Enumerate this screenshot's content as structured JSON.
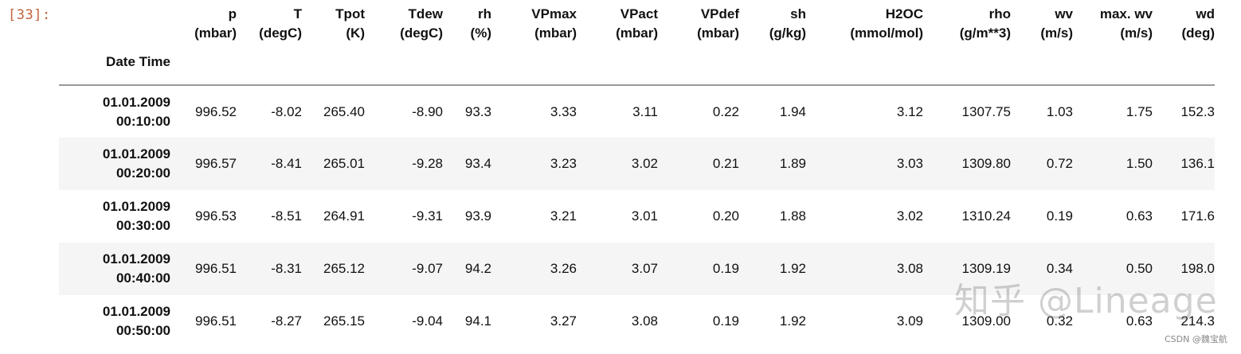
{
  "cell": {
    "prompt": "[33]:"
  },
  "table": {
    "index_name": "Date Time",
    "columns": [
      {
        "name": "p",
        "unit": "(mbar)"
      },
      {
        "name": "T",
        "unit": "(degC)"
      },
      {
        "name": "Tpot",
        "unit": "(K)"
      },
      {
        "name": "Tdew",
        "unit": "(degC)"
      },
      {
        "name": "rh",
        "unit": "(%)"
      },
      {
        "name": "VPmax",
        "unit": "(mbar)"
      },
      {
        "name": "VPact",
        "unit": "(mbar)"
      },
      {
        "name": "VPdef",
        "unit": "(mbar)"
      },
      {
        "name": "sh",
        "unit": "(g/kg)"
      },
      {
        "name": "H2OC",
        "unit": "(mmol/mol)"
      },
      {
        "name": "rho",
        "unit": "(g/m**3)"
      },
      {
        "name": "wv",
        "unit": "(m/s)"
      },
      {
        "name": "max. wv",
        "unit": "(m/s)"
      },
      {
        "name": "wd",
        "unit": "(deg)"
      }
    ],
    "rows": [
      {
        "date": "01.01.2009",
        "time": "00:10:00",
        "values": [
          "996.52",
          "-8.02",
          "265.40",
          "-8.90",
          "93.3",
          "3.33",
          "3.11",
          "0.22",
          "1.94",
          "3.12",
          "1307.75",
          "1.03",
          "1.75",
          "152.3"
        ]
      },
      {
        "date": "01.01.2009",
        "time": "00:20:00",
        "values": [
          "996.57",
          "-8.41",
          "265.01",
          "-9.28",
          "93.4",
          "3.23",
          "3.02",
          "0.21",
          "1.89",
          "3.03",
          "1309.80",
          "0.72",
          "1.50",
          "136.1"
        ]
      },
      {
        "date": "01.01.2009",
        "time": "00:30:00",
        "values": [
          "996.53",
          "-8.51",
          "264.91",
          "-9.31",
          "93.9",
          "3.21",
          "3.01",
          "0.20",
          "1.88",
          "3.02",
          "1310.24",
          "0.19",
          "0.63",
          "171.6"
        ]
      },
      {
        "date": "01.01.2009",
        "time": "00:40:00",
        "values": [
          "996.51",
          "-8.31",
          "265.12",
          "-9.07",
          "94.2",
          "3.26",
          "3.07",
          "0.19",
          "1.92",
          "3.08",
          "1309.19",
          "0.34",
          "0.50",
          "198.0"
        ]
      },
      {
        "date": "01.01.2009",
        "time": "00:50:00",
        "values": [
          "996.51",
          "-8.27",
          "265.15",
          "-9.04",
          "94.1",
          "3.27",
          "3.08",
          "0.19",
          "1.92",
          "3.09",
          "1309.00",
          "0.32",
          "0.63",
          "214.3"
        ]
      }
    ]
  },
  "watermark": {
    "text": "知乎 @Lineage"
  },
  "credit": {
    "text": "CSDN @魏宝航"
  },
  "colors": {
    "prompt": "#c1623a",
    "stripe": "#f5f5f5",
    "rule": "#9a9a9a"
  }
}
